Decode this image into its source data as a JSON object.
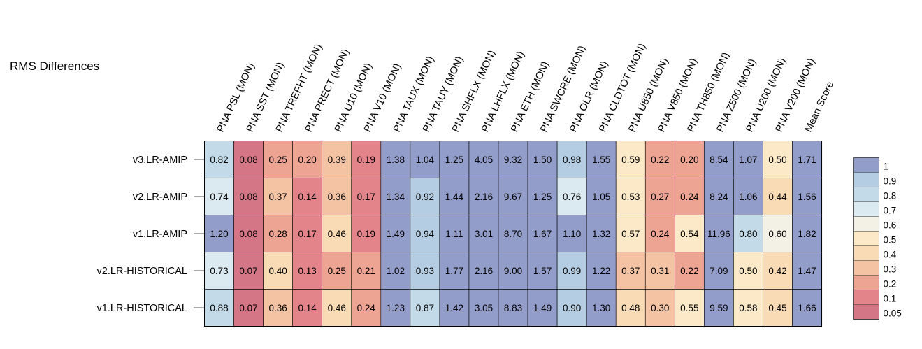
{
  "chart_data": {
    "type": "heatmap",
    "title": "RMS Differences",
    "columns": [
      "PNA PSL (MON)",
      "PNA SST (MON)",
      "PNA TREFHT (MON)",
      "PNA PRECT (MON)",
      "PNA U10 (MON)",
      "PNA V10 (MON)",
      "PNA TAUX (MON)",
      "PNA TAUY (MON)",
      "PNA SHFLX (MON)",
      "PNA LHFLX (MON)",
      "PNA ETH (MON)",
      "PNA SWCRE (MON)",
      "PNA OLR (MON)",
      "PNA CLDTOT (MON)",
      "PNA U850 (MON)",
      "PNA V850 (MON)",
      "PNA TH850 (MON)",
      "PNA Z500 (MON)",
      "PNA U200 (MON)",
      "PNA V200 (MON)",
      "Mean Score"
    ],
    "rows": [
      "v3.LR-AMIP",
      "v2.LR-AMIP",
      "v1.LR-AMIP",
      "v2.LR-HISTORICAL",
      "v1.LR-HISTORICAL"
    ],
    "values": [
      [
        "0.82",
        "0.08",
        "0.25",
        "0.20",
        "0.39",
        "0.19",
        "1.38",
        "1.04",
        "1.25",
        "4.05",
        "9.32",
        "1.50",
        "0.98",
        "1.55",
        "0.59",
        "0.22",
        "0.20",
        "8.54",
        "1.07",
        "0.50",
        "1.71"
      ],
      [
        "0.74",
        "0.08",
        "0.37",
        "0.14",
        "0.36",
        "0.17",
        "1.34",
        "0.92",
        "1.44",
        "2.16",
        "9.67",
        "1.25",
        "0.76",
        "1.05",
        "0.53",
        "0.27",
        "0.24",
        "8.24",
        "1.06",
        "0.44",
        "1.56"
      ],
      [
        "1.20",
        "0.08",
        "0.28",
        "0.17",
        "0.46",
        "0.19",
        "1.49",
        "0.94",
        "1.11",
        "3.01",
        "8.70",
        "1.67",
        "1.10",
        "1.32",
        "0.57",
        "0.24",
        "0.54",
        "11.96",
        "0.80",
        "0.60",
        "1.82"
      ],
      [
        "0.73",
        "0.07",
        "0.40",
        "0.13",
        "0.25",
        "0.21",
        "1.02",
        "0.93",
        "1.77",
        "2.16",
        "9.00",
        "1.57",
        "0.99",
        "1.22",
        "0.37",
        "0.31",
        "0.22",
        "7.09",
        "0.50",
        "0.42",
        "1.47"
      ],
      [
        "0.88",
        "0.07",
        "0.36",
        "0.14",
        "0.46",
        "0.24",
        "1.23",
        "0.87",
        "1.42",
        "3.05",
        "8.83",
        "1.49",
        "0.90",
        "1.30",
        "0.48",
        "0.30",
        "0.55",
        "9.59",
        "0.58",
        "0.45",
        "1.66"
      ]
    ],
    "colorbar": {
      "labels": [
        "1",
        "0.9",
        "0.8",
        "0.7",
        "0.6",
        "0.5",
        "0.4",
        "0.3",
        "0.2",
        "0.1",
        "0.05"
      ],
      "colors": [
        "#929dc9",
        "#b4cde2",
        "#c3dbe9",
        "#dbeaf1",
        "#f3f1e6",
        "#fbe9c8",
        "#f9dcb5",
        "#f4c3a3",
        "#eea493",
        "#e28489",
        "#d57686"
      ]
    }
  }
}
